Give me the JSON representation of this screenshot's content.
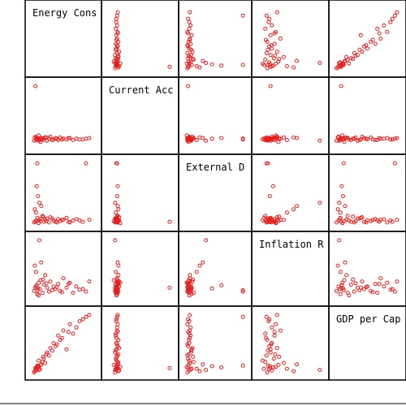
{
  "chart_data": {
    "type": "scatter-matrix",
    "variables": [
      "Energy Cons",
      "Current Acc",
      "External D",
      "Inflation R",
      "GDP per Cap"
    ],
    "marker": {
      "shape": "circle-open",
      "color": "#e02020"
    },
    "points": [
      [
        0.05,
        0.12,
        0.05,
        0.15,
        0.03
      ],
      [
        0.08,
        0.18,
        0.08,
        0.22,
        0.06
      ],
      [
        0.1,
        0.15,
        0.12,
        0.1,
        0.09
      ],
      [
        0.12,
        0.2,
        0.04,
        0.28,
        0.12
      ],
      [
        0.14,
        0.14,
        0.1,
        0.18,
        0.08
      ],
      [
        0.15,
        0.1,
        0.07,
        0.32,
        0.15
      ],
      [
        0.18,
        0.16,
        0.15,
        0.12,
        0.2
      ],
      [
        0.2,
        0.13,
        0.06,
        0.25,
        0.25
      ],
      [
        0.22,
        0.17,
        0.09,
        0.4,
        0.18
      ],
      [
        0.25,
        0.12,
        0.11,
        0.2,
        0.35
      ],
      [
        0.28,
        0.15,
        0.05,
        0.14,
        0.3
      ],
      [
        0.3,
        0.18,
        0.13,
        0.3,
        0.42
      ],
      [
        0.35,
        0.14,
        0.08,
        0.22,
        0.5
      ],
      [
        0.38,
        0.16,
        0.06,
        0.18,
        0.45
      ],
      [
        0.42,
        0.13,
        0.1,
        0.26,
        0.62
      ],
      [
        0.45,
        0.17,
        0.07,
        0.15,
        0.55
      ],
      [
        0.5,
        0.15,
        0.09,
        0.35,
        0.7
      ],
      [
        0.55,
        0.14,
        0.12,
        0.2,
        0.4
      ],
      [
        0.6,
        0.16,
        0.05,
        0.28,
        0.8
      ],
      [
        0.65,
        0.13,
        0.08,
        0.12,
        0.65
      ],
      [
        0.7,
        0.15,
        0.1,
        0.22,
        0.75
      ],
      [
        0.8,
        0.14,
        0.06,
        0.18,
        0.88
      ],
      [
        0.9,
        0.16,
        0.09,
        0.3,
        0.95
      ],
      [
        0.07,
        0.95,
        0.06,
        0.2,
        0.1
      ],
      [
        0.1,
        0.14,
        0.95,
        0.16,
        0.14
      ],
      [
        0.09,
        0.16,
        0.6,
        0.24,
        0.11
      ],
      [
        0.11,
        0.15,
        0.45,
        0.19,
        0.13
      ],
      [
        0.13,
        0.12,
        0.35,
        0.95,
        0.07
      ],
      [
        0.06,
        0.17,
        0.25,
        0.55,
        0.05
      ],
      [
        0.08,
        0.13,
        0.2,
        0.45,
        0.09
      ],
      [
        0.16,
        0.16,
        0.3,
        0.6,
        0.16
      ],
      [
        0.12,
        0.14,
        0.08,
        0.08,
        0.22
      ],
      [
        0.19,
        0.15,
        0.14,
        0.33,
        0.28
      ],
      [
        0.24,
        0.17,
        0.07,
        0.27,
        0.32
      ],
      [
        0.33,
        0.13,
        0.11,
        0.16,
        0.38
      ],
      [
        0.4,
        0.15,
        0.05,
        0.21,
        0.48
      ],
      [
        0.48,
        0.14,
        0.09,
        0.13,
        0.58
      ],
      [
        0.58,
        0.16,
        0.06,
        0.26,
        0.68
      ],
      [
        0.75,
        0.14,
        0.08,
        0.17,
        0.85
      ],
      [
        0.85,
        0.15,
        0.95,
        0.14,
        0.92
      ]
    ]
  }
}
